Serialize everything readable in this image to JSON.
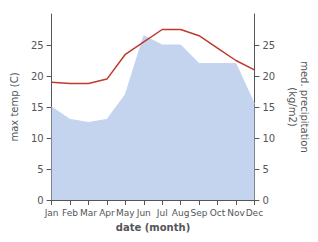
{
  "chart_data": {
    "type": "line",
    "xlabel": "date (month)",
    "ylabel": "max temp (C)",
    "y2label": "med. precipitation\n(kg/m2)",
    "categories": [
      "Jan",
      "Feb",
      "Mar",
      "Apr",
      "May",
      "Jun",
      "Jul",
      "Aug",
      "Sep",
      "Oct",
      "Nov",
      "Dec"
    ],
    "series": [
      {
        "type": "line",
        "color": "#c0392b",
        "values": [
          19.0,
          18.8,
          18.8,
          19.5,
          23.5,
          25.5,
          27.5,
          27.5,
          26.5,
          24.5,
          22.5,
          21.0
        ]
      },
      {
        "type": "area",
        "color": "#c5d4ee",
        "axis": "y2",
        "values": [
          15.0,
          13.0,
          12.5,
          13.0,
          17.0,
          26.5,
          25.0,
          25.0,
          22.0,
          22.0,
          22.0,
          15.5
        ]
      }
    ],
    "ylim": [
      0,
      30
    ],
    "yticks": [
      0,
      5,
      10,
      15,
      20,
      25
    ],
    "y2lim": [
      0,
      30
    ],
    "y2ticks": [
      0,
      5,
      10,
      15,
      20,
      25
    ],
    "grid": false
  }
}
